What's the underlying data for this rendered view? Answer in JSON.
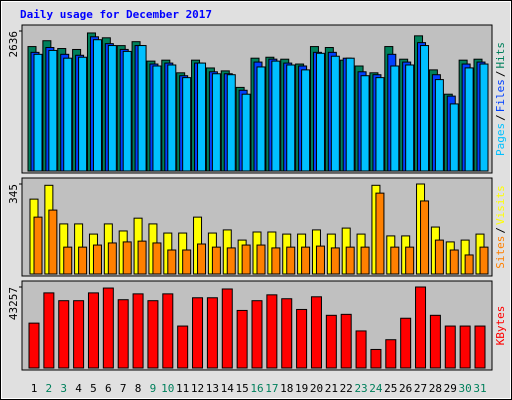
{
  "chart_data": [
    {
      "type": "bar",
      "title": "Daily usage for December 2017",
      "title_color": "#0000ff",
      "ylim": [
        0,
        2636
      ],
      "yticks": [
        2636
      ],
      "separator": "/",
      "series": [
        {
          "name": "Hits",
          "color": "#00805c",
          "values": [
            2343,
            2453,
            2306,
            2288,
            2599,
            2508,
            2361,
            2435,
            2069,
            2087,
            1849,
            2087,
            1940,
            1885,
            1574,
            2124,
            2142,
            2105,
            2014,
            2343,
            2325,
            2087,
            1977,
            1849,
            2343,
            2105,
            2545,
            1904,
            1446,
            2087,
            2105
          ]
        },
        {
          "name": "Files",
          "color": "#0040ff",
          "values": [
            2234,
            2325,
            2197,
            2179,
            2527,
            2398,
            2289,
            2362,
            2014,
            2032,
            1794,
            2032,
            1868,
            1831,
            1520,
            2051,
            2106,
            2032,
            1977,
            2234,
            2234,
            2124,
            1868,
            1813,
            2197,
            2051,
            2417,
            1813,
            1410,
            2014,
            2051
          ]
        },
        {
          "name": "Pages",
          "color": "#00c0ff",
          "values": [
            2197,
            2270,
            2124,
            2142,
            2472,
            2362,
            2252,
            2362,
            1977,
            1996,
            1758,
            2032,
            1831,
            1813,
            1446,
            1959,
            2069,
            1996,
            1904,
            2216,
            2161,
            2124,
            1794,
            1758,
            1977,
            1996,
            2362,
            1721,
            1263,
            1941,
            2014
          ]
        }
      ]
    },
    {
      "type": "bar",
      "ylim": [
        0,
        345
      ],
      "yticks": [
        345
      ],
      "separator": "/",
      "series": [
        {
          "name": "Visits",
          "color": "#ffff00",
          "values": [
            287,
            340,
            192,
            192,
            153,
            192,
            165,
            214,
            192,
            157,
            157,
            218,
            157,
            169,
            130,
            161,
            161,
            153,
            153,
            169,
            153,
            176,
            153,
            340,
            146,
            146,
            345,
            180,
            123,
            130,
            153
          ]
        },
        {
          "name": "Sites",
          "color": "#ff8000",
          "values": [
            218,
            245,
            103,
            103,
            111,
            119,
            123,
            126,
            119,
            92,
            92,
            115,
            103,
            100,
            111,
            111,
            100,
            103,
            103,
            107,
            100,
            103,
            103,
            310,
            103,
            103,
            280,
            130,
            92,
            73,
            103
          ]
        }
      ]
    },
    {
      "type": "bar",
      "ylim": [
        0,
        43257
      ],
      "yticks": [
        43257
      ],
      "series": [
        {
          "name": "KBytes",
          "color": "#ff0000",
          "values": [
            23966,
            40117,
            35949,
            35949,
            40117,
            42700,
            36470,
            39596,
            35949,
            39596,
            22403,
            37512,
            37512,
            42200,
            30739,
            35949,
            39075,
            36991,
            31260,
            38033,
            28134,
            28655,
            19798,
            9899,
            15109,
            26571,
            43257,
            28134,
            22403,
            22403,
            22403
          ]
        }
      ],
      "categories": [
        "1",
        "2",
        "3",
        "4",
        "5",
        "6",
        "7",
        "8",
        "9",
        "10",
        "11",
        "12",
        "13",
        "14",
        "15",
        "16",
        "17",
        "18",
        "19",
        "20",
        "21",
        "22",
        "23",
        "24",
        "25",
        "26",
        "27",
        "28",
        "29",
        "30",
        "31"
      ],
      "category_colors": [
        "#000000",
        "#00805c",
        "#00805c",
        "#000000",
        "#000000",
        "#000000",
        "#000000",
        "#000000",
        "#00805c",
        "#00805c",
        "#000000",
        "#000000",
        "#000000",
        "#000000",
        "#000000",
        "#00805c",
        "#00805c",
        "#000000",
        "#000000",
        "#000000",
        "#000000",
        "#000000",
        "#00805c",
        "#00805c",
        "#000000",
        "#000000",
        "#000000",
        "#000000",
        "#000000",
        "#00805c",
        "#00805c"
      ]
    }
  ]
}
